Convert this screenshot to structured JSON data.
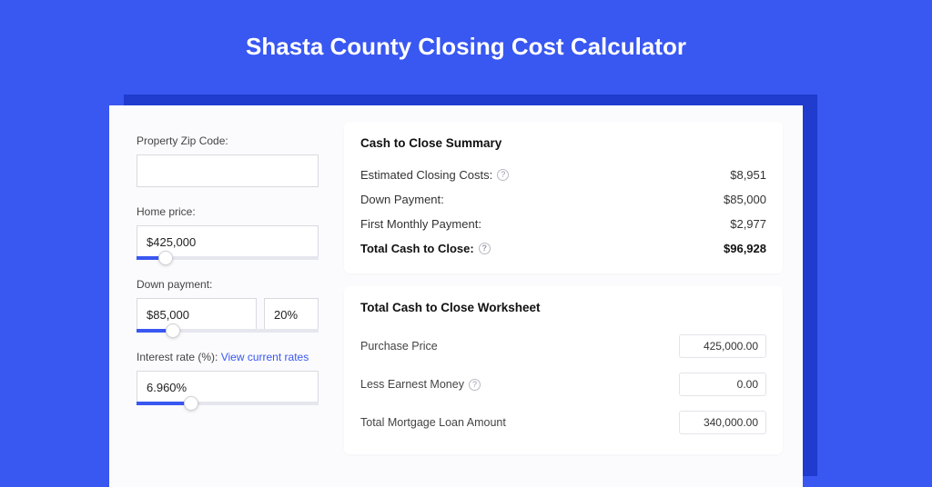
{
  "colors": {
    "page_bg": "#3957f1",
    "card_bg": "#fbfbfd",
    "shadow_bg": "#1f3ccf",
    "panel_bg": "#ffffff",
    "input_border": "#d9d9e0",
    "slider_track": "#e6e6ee",
    "slider_fill": "#3957f1",
    "link": "#3957f1",
    "text_primary": "#111111",
    "text_body": "#333333",
    "text_muted": "#444444"
  },
  "typography": {
    "hero_fontsize": 26,
    "hero_weight": 700,
    "panel_title_fontsize": 13.5,
    "label_fontsize": 12,
    "row_fontsize": 13
  },
  "hero": {
    "title": "Shasta County Closing Cost Calculator"
  },
  "form": {
    "zip": {
      "label": "Property Zip Code:",
      "value": ""
    },
    "home_price": {
      "label": "Home price:",
      "value": "$425,000",
      "slider_pct": 16
    },
    "down_payment": {
      "label": "Down payment:",
      "amount": "$85,000",
      "percent": "20%",
      "slider_pct": 20
    },
    "interest": {
      "label": "Interest rate (%):",
      "link_text": "View current rates",
      "value": "6.960%",
      "slider_pct": 30
    }
  },
  "summary": {
    "title": "Cash to Close Summary",
    "rows": [
      {
        "label": "Estimated Closing Costs:",
        "help": true,
        "value": "$8,951"
      },
      {
        "label": "Down Payment:",
        "help": false,
        "value": "$85,000"
      },
      {
        "label": "First Monthly Payment:",
        "help": false,
        "value": "$2,977"
      }
    ],
    "total": {
      "label": "Total Cash to Close:",
      "help": true,
      "value": "$96,928"
    }
  },
  "worksheet": {
    "title": "Total Cash to Close Worksheet",
    "rows": [
      {
        "label": "Purchase Price",
        "help": false,
        "value": "425,000.00"
      },
      {
        "label": "Less Earnest Money",
        "help": true,
        "value": "0.00"
      },
      {
        "label": "Total Mortgage Loan Amount",
        "help": false,
        "value": "340,000.00"
      }
    ]
  }
}
